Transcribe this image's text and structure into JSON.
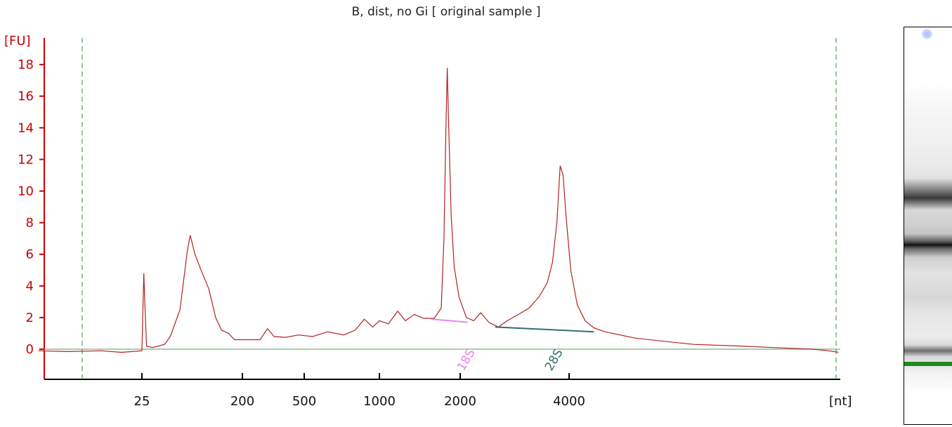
{
  "chart_data": {
    "type": "line",
    "title": "B, dist, no Gi  [ original sample ]",
    "ylabel": "[FU]",
    "xlabel": "[nt]",
    "ylim": [
      -2,
      20
    ],
    "yticks": [
      0,
      2,
      4,
      6,
      8,
      10,
      12,
      14,
      16,
      18
    ],
    "xtick_labels": [
      "25",
      "200",
      "500",
      "1000",
      "2000",
      "4000"
    ],
    "xtick_values": [
      25,
      200,
      500,
      1000,
      2000,
      4000
    ],
    "colors": {
      "trace": "#b22222",
      "baseline": "#8fbc8f",
      "axis": "#cc0000",
      "window": "#3a8a3a",
      "rRNA18S": "#ee82ee",
      "rRNA28S": "#2f6f6f",
      "gel_marker": "#1a8a1a"
    },
    "series": [
      {
        "values_note": "",
        "points": [
          [
            6,
            -0.1
          ],
          [
            10,
            -0.15
          ],
          [
            16,
            -0.1
          ],
          [
            20,
            -0.2
          ],
          [
            25,
            -0.1
          ],
          [
            25.5,
            2.5
          ],
          [
            26,
            4.8
          ],
          [
            26.7,
            2.5
          ],
          [
            27.5,
            0.2
          ],
          [
            31,
            0.1
          ],
          [
            40,
            0.3
          ],
          [
            45,
            0.8
          ],
          [
            55,
            2.5
          ],
          [
            64,
            6.2
          ],
          [
            68,
            7.2
          ],
          [
            75,
            6.0
          ],
          [
            85,
            5.0
          ],
          [
            100,
            3.8
          ],
          [
            115,
            2.0
          ],
          [
            130,
            1.2
          ],
          [
            150,
            1.0
          ],
          [
            170,
            0.6
          ],
          [
            200,
            0.6
          ],
          [
            260,
            0.6
          ],
          [
            290,
            1.3
          ],
          [
            320,
            0.8
          ],
          [
            380,
            0.75
          ],
          [
            460,
            0.9
          ],
          [
            540,
            0.8
          ],
          [
            620,
            1.1
          ],
          [
            720,
            0.9
          ],
          [
            800,
            1.2
          ],
          [
            870,
            1.9
          ],
          [
            940,
            1.4
          ],
          [
            1000,
            1.8
          ],
          [
            1080,
            1.6
          ],
          [
            1170,
            2.4
          ],
          [
            1250,
            1.8
          ],
          [
            1350,
            2.2
          ],
          [
            1460,
            1.95
          ],
          [
            1600,
            1.95
          ],
          [
            1700,
            2.6
          ],
          [
            1740,
            7.0
          ],
          [
            1770,
            14.0
          ],
          [
            1790,
            17.8
          ],
          [
            1810,
            14.5
          ],
          [
            1850,
            8.5
          ],
          [
            1900,
            5.2
          ],
          [
            1980,
            3.3
          ],
          [
            2080,
            2.0
          ],
          [
            2180,
            1.8
          ],
          [
            2280,
            2.3
          ],
          [
            2400,
            1.7
          ],
          [
            2550,
            1.4
          ],
          [
            2700,
            1.8
          ],
          [
            2900,
            2.2
          ],
          [
            3100,
            2.6
          ],
          [
            3300,
            3.3
          ],
          [
            3480,
            4.2
          ],
          [
            3600,
            5.5
          ],
          [
            3700,
            8.0
          ],
          [
            3780,
            11.6
          ],
          [
            3850,
            11.0
          ],
          [
            3920,
            8.5
          ],
          [
            4050,
            5.0
          ],
          [
            4250,
            2.8
          ],
          [
            4500,
            1.8
          ],
          [
            4800,
            1.35
          ],
          [
            5200,
            1.1
          ],
          [
            6500,
            0.7
          ],
          [
            8000,
            0.5
          ],
          [
            10000,
            0.3
          ],
          [
            14000,
            0.2
          ],
          [
            18000,
            0.1
          ],
          [
            24000,
            0.0
          ],
          [
            27000,
            -0.1
          ],
          [
            29000,
            -0.2
          ]
        ]
      }
    ],
    "ribosomal_lines": [
      {
        "label": "18S",
        "from": [
          1560,
          1.9
        ],
        "to": [
          2100,
          1.7
        ]
      },
      {
        "label": "28S",
        "from": [
          2500,
          1.4
        ],
        "to": [
          4800,
          1.1
        ]
      }
    ],
    "window_markers_nt": [
      13,
      28500
    ],
    "legend": "none",
    "grid": false
  }
}
